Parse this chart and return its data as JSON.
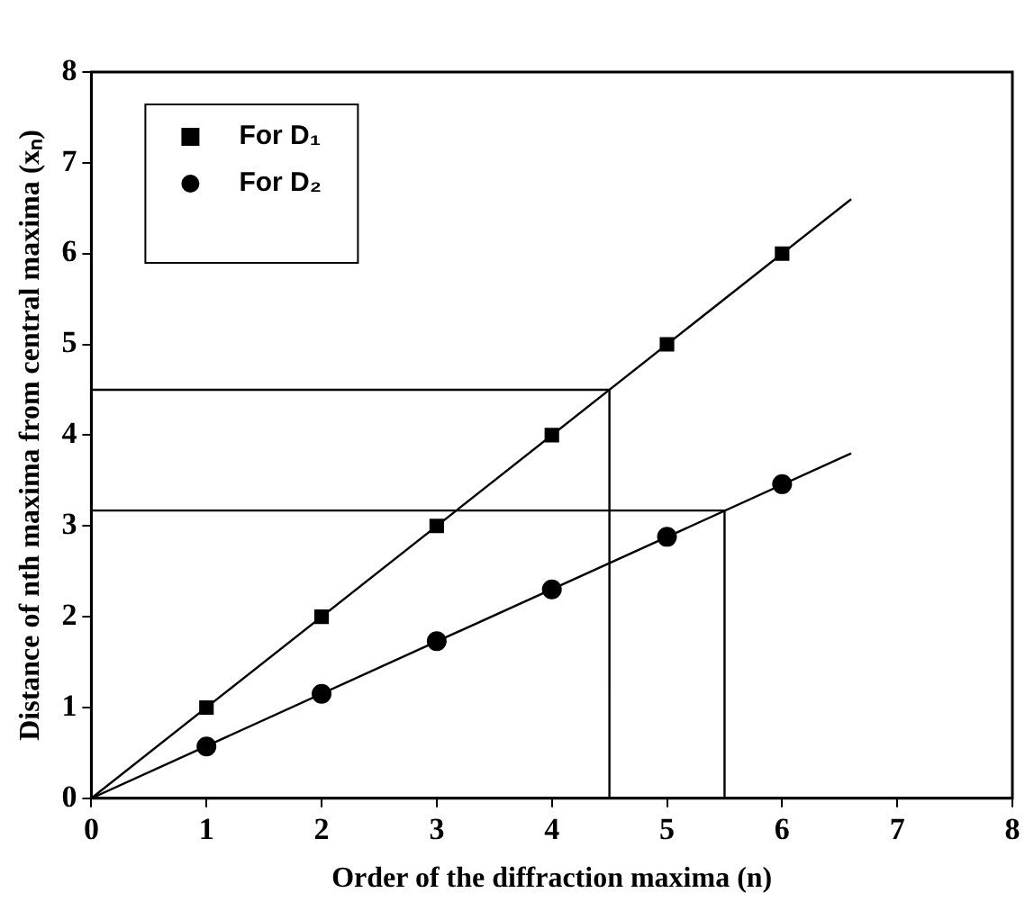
{
  "chart_data": {
    "type": "scatter",
    "xlabel": "Order of the diffraction maxima (n)",
    "ylabel": "Distance of nth maxima from central maxima (xₙ)",
    "xlim": [
      0,
      8
    ],
    "ylim": [
      0,
      8
    ],
    "xticks": [
      0,
      1,
      2,
      3,
      4,
      5,
      6,
      7,
      8
    ],
    "yticks": [
      0,
      1,
      2,
      3,
      4,
      5,
      6,
      7,
      8
    ],
    "grid": false,
    "legend": "top left",
    "series": [
      {
        "name": "For D₁",
        "type": "scatter",
        "marker": "square",
        "color": "#000000",
        "x": [
          1,
          2,
          3,
          4,
          5,
          6
        ],
        "values": [
          1,
          2,
          3,
          4,
          5,
          6
        ]
      },
      {
        "name": "For D₂",
        "type": "scatter",
        "marker": "circle",
        "color": "#000000",
        "x": [
          1,
          2,
          3,
          4,
          5,
          6
        ],
        "values": [
          0.57,
          1.15,
          1.73,
          2.3,
          2.88,
          3.46
        ]
      },
      {
        "type": "line",
        "marker": "none",
        "color": "#000000",
        "x": [
          0,
          6.6
        ],
        "values": [
          0,
          6.6
        ]
      },
      {
        "type": "line",
        "marker": "none",
        "color": "#000000",
        "x": [
          0,
          6.6
        ],
        "values": [
          0,
          3.8
        ]
      },
      {
        "type": "line",
        "marker": "none",
        "color": "#000000",
        "x": [
          0,
          4.5,
          4.5
        ],
        "values": [
          4.5,
          4.5,
          0
        ]
      },
      {
        "type": "line",
        "marker": "none",
        "color": "#000000",
        "x": [
          0,
          5.5,
          5.5
        ],
        "values": [
          3.17,
          3.17,
          0
        ]
      }
    ]
  }
}
